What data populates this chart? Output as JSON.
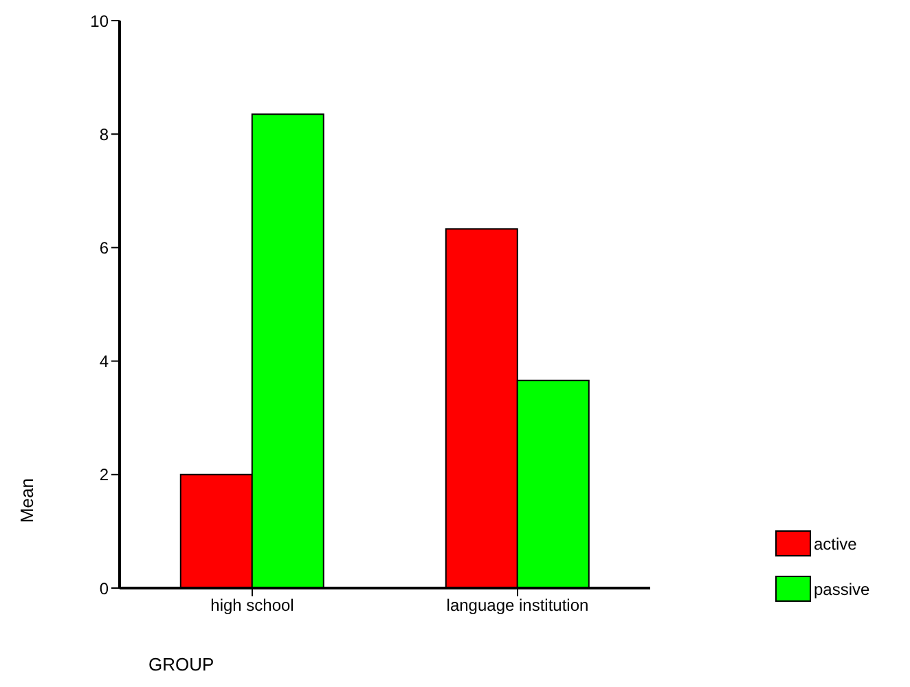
{
  "chart_data": {
    "type": "bar",
    "xlabel": "GROUP",
    "ylabel": "Mean",
    "categories": [
      "high school",
      "language institution"
    ],
    "series": [
      {
        "name": "active",
        "color": "#ff0000",
        "values": [
          2.0,
          6.33
        ]
      },
      {
        "name": "passive",
        "color": "#00ff00",
        "values": [
          8.35,
          3.66
        ]
      }
    ],
    "ylim": [
      0,
      10
    ],
    "yticks": [
      0,
      2,
      4,
      6,
      8,
      10
    ],
    "grid": false,
    "legend": "bottom right"
  }
}
